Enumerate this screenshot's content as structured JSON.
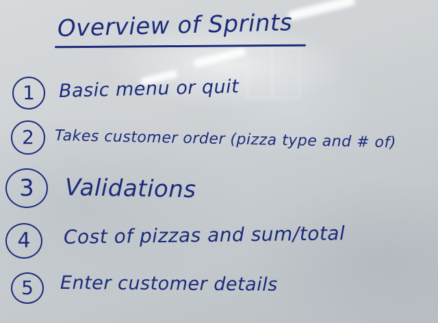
{
  "whiteboard": {
    "title": "Overview of Sprints",
    "ink_color": "#1b2a7a",
    "items": [
      {
        "number": "1",
        "text": "Basic menu or quit"
      },
      {
        "number": "2",
        "text": "Takes customer order (pizza type and # of)"
      },
      {
        "number": "3",
        "text": "Validations"
      },
      {
        "number": "4",
        "text": "Cost of pizzas and sum/total"
      },
      {
        "number": "5",
        "text": "Enter customer details"
      }
    ]
  }
}
